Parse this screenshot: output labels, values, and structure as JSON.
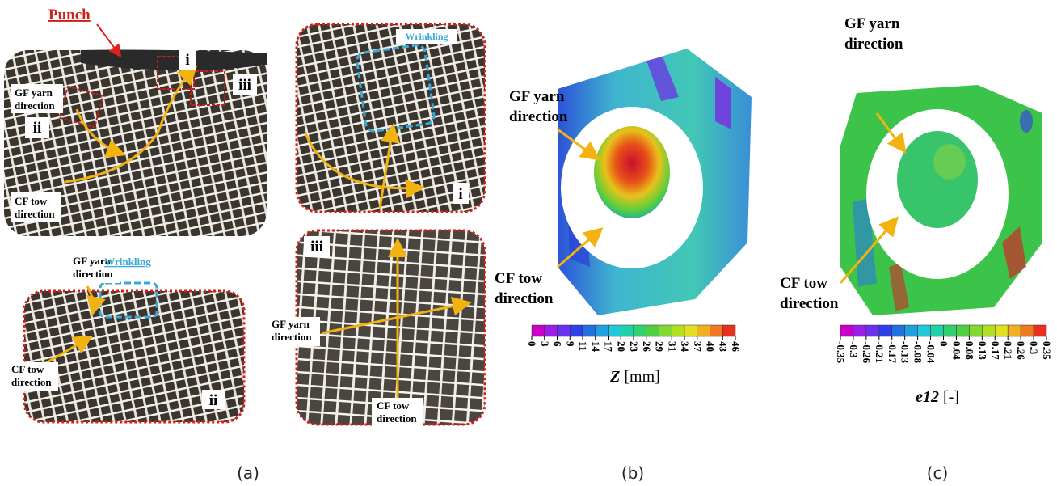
{
  "panel_a": {
    "punch": "Punch",
    "caption": "(a)",
    "main": {
      "label_i": "i",
      "label_ii": "ii",
      "label_iii": "iii",
      "gf": "GF yarn direction",
      "cf": "CF tow direction"
    },
    "detail_i": {
      "wrinkling": "Wrinkling",
      "label": "i"
    },
    "detail_ii": {
      "gf": "GF yarn direction",
      "wrinkling": "Wrinkling",
      "cf": "CF tow direction",
      "label": "ii"
    },
    "detail_iii": {
      "label": "iii",
      "gf": "GF yarn direction",
      "cf": "CF tow direction"
    }
  },
  "panel_b": {
    "caption": "(b)",
    "gf": "GF yarn direction",
    "cf": "CF tow direction",
    "colorbar": {
      "variable": "Z",
      "unit": "[mm]",
      "ticks": [
        0,
        3,
        6,
        9,
        11,
        14,
        17,
        20,
        23,
        26,
        29,
        31,
        34,
        37,
        40,
        43,
        46
      ]
    }
  },
  "panel_c": {
    "caption": "(c)",
    "gf": "GF yarn direction",
    "cf": "CF tow direction",
    "colorbar": {
      "variable": "e12",
      "unit": "[-]",
      "ticks": [
        -0.35,
        -0.3,
        -0.26,
        -0.21,
        -0.17,
        -0.13,
        -0.08,
        -0.04,
        0,
        0.04,
        0.08,
        0.13,
        0.17,
        0.21,
        0.26,
        0.3,
        0.35
      ]
    }
  }
}
